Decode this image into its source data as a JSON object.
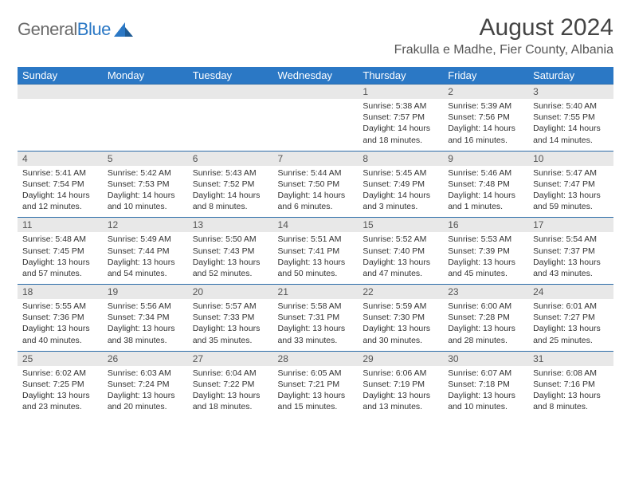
{
  "brand": {
    "name1": "General",
    "name2": "Blue"
  },
  "title": "August 2024",
  "location": "Frakulla e Madhe, Fier County, Albania",
  "colors": {
    "accent": "#2b78c5",
    "headerText": "#ffffff",
    "dateRowBg": "#e8e8e8",
    "rule": "#2b6ca8"
  },
  "days": [
    "Sunday",
    "Monday",
    "Tuesday",
    "Wednesday",
    "Thursday",
    "Friday",
    "Saturday"
  ],
  "weeks": [
    {
      "dates": [
        "",
        "",
        "",
        "",
        "1",
        "2",
        "3"
      ],
      "cells": [
        null,
        null,
        null,
        null,
        {
          "sunrise": "5:38 AM",
          "sunset": "7:57 PM",
          "dh": "14",
          "dm": "18"
        },
        {
          "sunrise": "5:39 AM",
          "sunset": "7:56 PM",
          "dh": "14",
          "dm": "16"
        },
        {
          "sunrise": "5:40 AM",
          "sunset": "7:55 PM",
          "dh": "14",
          "dm": "14"
        }
      ]
    },
    {
      "dates": [
        "4",
        "5",
        "6",
        "7",
        "8",
        "9",
        "10"
      ],
      "cells": [
        {
          "sunrise": "5:41 AM",
          "sunset": "7:54 PM",
          "dh": "14",
          "dm": "12"
        },
        {
          "sunrise": "5:42 AM",
          "sunset": "7:53 PM",
          "dh": "14",
          "dm": "10"
        },
        {
          "sunrise": "5:43 AM",
          "sunset": "7:52 PM",
          "dh": "14",
          "dm": "8"
        },
        {
          "sunrise": "5:44 AM",
          "sunset": "7:50 PM",
          "dh": "14",
          "dm": "6"
        },
        {
          "sunrise": "5:45 AM",
          "sunset": "7:49 PM",
          "dh": "14",
          "dm": "3"
        },
        {
          "sunrise": "5:46 AM",
          "sunset": "7:48 PM",
          "dh": "14",
          "dm": "1"
        },
        {
          "sunrise": "5:47 AM",
          "sunset": "7:47 PM",
          "dh": "13",
          "dm": "59"
        }
      ]
    },
    {
      "dates": [
        "11",
        "12",
        "13",
        "14",
        "15",
        "16",
        "17"
      ],
      "cells": [
        {
          "sunrise": "5:48 AM",
          "sunset": "7:45 PM",
          "dh": "13",
          "dm": "57"
        },
        {
          "sunrise": "5:49 AM",
          "sunset": "7:44 PM",
          "dh": "13",
          "dm": "54"
        },
        {
          "sunrise": "5:50 AM",
          "sunset": "7:43 PM",
          "dh": "13",
          "dm": "52"
        },
        {
          "sunrise": "5:51 AM",
          "sunset": "7:41 PM",
          "dh": "13",
          "dm": "50"
        },
        {
          "sunrise": "5:52 AM",
          "sunset": "7:40 PM",
          "dh": "13",
          "dm": "47"
        },
        {
          "sunrise": "5:53 AM",
          "sunset": "7:39 PM",
          "dh": "13",
          "dm": "45"
        },
        {
          "sunrise": "5:54 AM",
          "sunset": "7:37 PM",
          "dh": "13",
          "dm": "43"
        }
      ]
    },
    {
      "dates": [
        "18",
        "19",
        "20",
        "21",
        "22",
        "23",
        "24"
      ],
      "cells": [
        {
          "sunrise": "5:55 AM",
          "sunset": "7:36 PM",
          "dh": "13",
          "dm": "40"
        },
        {
          "sunrise": "5:56 AM",
          "sunset": "7:34 PM",
          "dh": "13",
          "dm": "38"
        },
        {
          "sunrise": "5:57 AM",
          "sunset": "7:33 PM",
          "dh": "13",
          "dm": "35"
        },
        {
          "sunrise": "5:58 AM",
          "sunset": "7:31 PM",
          "dh": "13",
          "dm": "33"
        },
        {
          "sunrise": "5:59 AM",
          "sunset": "7:30 PM",
          "dh": "13",
          "dm": "30"
        },
        {
          "sunrise": "6:00 AM",
          "sunset": "7:28 PM",
          "dh": "13",
          "dm": "28"
        },
        {
          "sunrise": "6:01 AM",
          "sunset": "7:27 PM",
          "dh": "13",
          "dm": "25"
        }
      ]
    },
    {
      "dates": [
        "25",
        "26",
        "27",
        "28",
        "29",
        "30",
        "31"
      ],
      "cells": [
        {
          "sunrise": "6:02 AM",
          "sunset": "7:25 PM",
          "dh": "13",
          "dm": "23"
        },
        {
          "sunrise": "6:03 AM",
          "sunset": "7:24 PM",
          "dh": "13",
          "dm": "20"
        },
        {
          "sunrise": "6:04 AM",
          "sunset": "7:22 PM",
          "dh": "13",
          "dm": "18"
        },
        {
          "sunrise": "6:05 AM",
          "sunset": "7:21 PM",
          "dh": "13",
          "dm": "15"
        },
        {
          "sunrise": "6:06 AM",
          "sunset": "7:19 PM",
          "dh": "13",
          "dm": "13"
        },
        {
          "sunrise": "6:07 AM",
          "sunset": "7:18 PM",
          "dh": "13",
          "dm": "10"
        },
        {
          "sunrise": "6:08 AM",
          "sunset": "7:16 PM",
          "dh": "13",
          "dm": "8"
        }
      ]
    }
  ],
  "labels": {
    "sunrise": "Sunrise:",
    "sunset": "Sunset:",
    "daylight": "Daylight:",
    "hours": "hours",
    "and": "and",
    "minutes": "minutes."
  }
}
